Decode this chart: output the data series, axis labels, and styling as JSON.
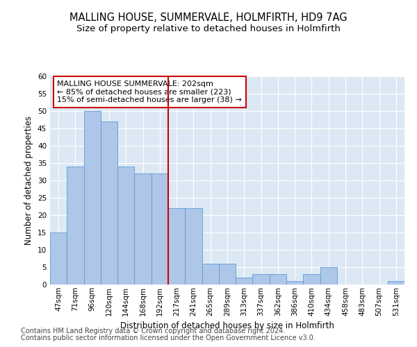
{
  "title": "MALLING HOUSE, SUMMERVALE, HOLMFIRTH, HD9 7AG",
  "subtitle": "Size of property relative to detached houses in Holmfirth",
  "xlabel": "Distribution of detached houses by size in Holmfirth",
  "ylabel": "Number of detached properties",
  "categories": [
    "47sqm",
    "71sqm",
    "96sqm",
    "120sqm",
    "144sqm",
    "168sqm",
    "192sqm",
    "217sqm",
    "241sqm",
    "265sqm",
    "289sqm",
    "313sqm",
    "337sqm",
    "362sqm",
    "386sqm",
    "410sqm",
    "434sqm",
    "458sqm",
    "483sqm",
    "507sqm",
    "531sqm"
  ],
  "values": [
    15,
    34,
    50,
    47,
    34,
    32,
    32,
    22,
    22,
    6,
    6,
    2,
    3,
    3,
    1,
    3,
    5,
    0,
    0,
    0,
    1
  ],
  "bar_color": "#aec6e8",
  "bar_edge_color": "#5b9bd5",
  "vline_color": "#cc0000",
  "vline_x_index": 7,
  "annotation_text": "MALLING HOUSE SUMMERVALE: 202sqm\n← 85% of detached houses are smaller (223)\n15% of semi-detached houses are larger (38) →",
  "annotation_box_color": "#ffffff",
  "annotation_box_edge": "#cc0000",
  "ylim": [
    0,
    60
  ],
  "yticks": [
    0,
    5,
    10,
    15,
    20,
    25,
    30,
    35,
    40,
    45,
    50,
    55,
    60
  ],
  "footer1": "Contains HM Land Registry data © Crown copyright and database right 2024.",
  "footer2": "Contains public sector information licensed under the Open Government Licence v3.0.",
  "bg_color": "#dce9f5",
  "fig_bg_color": "#ffffff",
  "title_fontsize": 10.5,
  "subtitle_fontsize": 9.5,
  "axis_label_fontsize": 8.5,
  "tick_fontsize": 7.5,
  "annotation_fontsize": 8,
  "footer_fontsize": 7
}
